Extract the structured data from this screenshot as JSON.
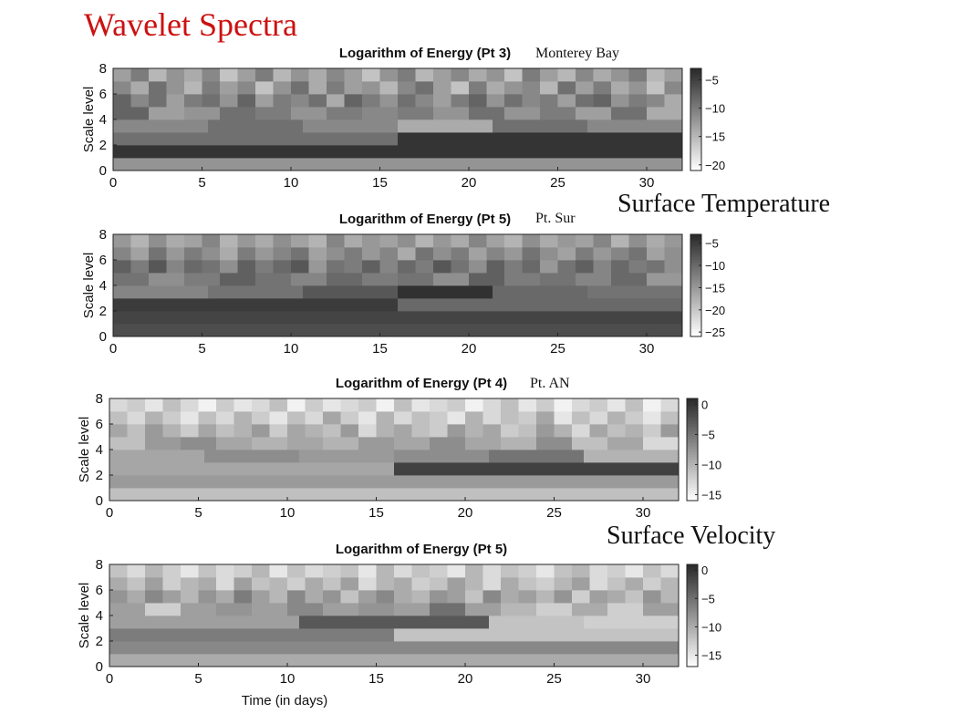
{
  "slide": {
    "title": "Wavelet Spectra",
    "section_temperature": "Surface Temperature",
    "section_velocity": "Surface Velocity",
    "colors": {
      "title": "#cc1111",
      "colormap": "gray (dark = high energy)"
    }
  },
  "chart_data": [
    {
      "type": "heatmap",
      "title": "Logarithm of Energy (Pt 3)",
      "location": "Monterey Bay",
      "xlabel": "",
      "ylabel": "Scale level",
      "xlim": [
        0,
        32
      ],
      "ylim": [
        0,
        8
      ],
      "xticks": [
        0,
        5,
        10,
        15,
        20,
        25,
        30
      ],
      "yticks": [
        0,
        2,
        4,
        6,
        8
      ],
      "colorbar": {
        "ticks": [
          -5,
          -10,
          -15,
          -20
        ],
        "range": [
          -21,
          -3
        ]
      },
      "levels_low_to_high": [
        [
          -12
        ],
        [
          -4
        ],
        [
          -9,
          -4
        ],
        [
          -11,
          -9,
          -11,
          -14,
          -9,
          -11
        ],
        [
          -8,
          -13,
          -12,
          -9,
          -10,
          -12,
          -10,
          -11,
          -10,
          -12,
          -9,
          -12,
          -10,
          -13,
          -9,
          -14
        ],
        [
          -8,
          -11,
          -9,
          -13,
          -10,
          -9,
          -12,
          -8,
          -13,
          -10,
          -11,
          -9,
          -14,
          -8,
          -10,
          -12,
          -9,
          -11,
          -13,
          -10,
          -8,
          -12,
          -9,
          -11,
          -10,
          -13,
          -9,
          -8,
          -12,
          -10,
          -11,
          -14
        ],
        [
          -11,
          -14,
          -9,
          -12,
          -15,
          -10,
          -13,
          -11,
          -16,
          -12,
          -9,
          -14,
          -10,
          -13,
          -12,
          -15,
          -11,
          -9,
          -13,
          -16,
          -10,
          -14,
          -12,
          -11,
          -15,
          -9,
          -13,
          -10,
          -14,
          -12,
          -16,
          -11
        ],
        [
          -13,
          -10,
          -15,
          -12,
          -14,
          -11,
          -16,
          -13,
          -10,
          -15,
          -12,
          -14,
          -11,
          -13,
          -16,
          -12,
          -10,
          -15,
          -13,
          -11,
          -14,
          -12,
          -16,
          -10,
          -13,
          -15,
          -11,
          -14,
          -12,
          -10,
          -15,
          -13
        ]
      ]
    },
    {
      "type": "heatmap",
      "title": "Logarithm of Energy (Pt 5)",
      "location": "Pt. Sur",
      "xlabel": "",
      "ylabel": "Scale level",
      "xlim": [
        0,
        32
      ],
      "ylim": [
        0,
        8
      ],
      "xticks": [
        0,
        5,
        10,
        15,
        20,
        25,
        30
      ],
      "yticks": [
        0,
        2,
        4,
        6,
        8
      ],
      "colorbar": {
        "ticks": [
          -5,
          -10,
          -15,
          -20,
          -25
        ],
        "range": [
          -26,
          -3
        ]
      },
      "levels_low_to_high": [
        [
          -7
        ],
        [
          -6
        ],
        [
          -5,
          -10
        ],
        [
          -13,
          -11,
          -8,
          -4,
          -10,
          -11
        ],
        [
          -11,
          -14,
          -12,
          -9,
          -11,
          -13,
          -10,
          -12,
          -11,
          -14,
          -9,
          -12,
          -11,
          -13,
          -10,
          -15
        ],
        [
          -9,
          -12,
          -8,
          -13,
          -10,
          -11,
          -14,
          -9,
          -12,
          -10,
          -8,
          -15,
          -11,
          -12,
          -9,
          -13,
          -10,
          -12,
          -8,
          -11,
          -14,
          -9,
          -12,
          -10,
          -15,
          -11,
          -9,
          -13,
          -10,
          -12,
          -11,
          -14
        ],
        [
          -13,
          -16,
          -11,
          -15,
          -12,
          -14,
          -17,
          -12,
          -15,
          -13,
          -11,
          -16,
          -14,
          -12,
          -15,
          -13,
          -17,
          -11,
          -14,
          -12,
          -16,
          -13,
          -15,
          -11,
          -14,
          -16,
          -12,
          -15,
          -13,
          -11,
          -16,
          -14
        ],
        [
          -15,
          -18,
          -14,
          -17,
          -16,
          -13,
          -18,
          -15,
          -17,
          -14,
          -16,
          -18,
          -13,
          -17,
          -15,
          -16,
          -14,
          -18,
          -15,
          -17,
          -13,
          -16,
          -18,
          -14,
          -17,
          -15,
          -16,
          -13,
          -18,
          -14,
          -17,
          -15
        ]
      ]
    },
    {
      "type": "heatmap",
      "title": "Logarithm of Energy (Pt 4)",
      "location": "Pt. AN",
      "xlabel": "",
      "ylabel": "Scale level",
      "xlim": [
        0,
        32
      ],
      "ylim": [
        0,
        8
      ],
      "xticks": [
        0,
        5,
        10,
        15,
        20,
        25,
        30
      ],
      "yticks": [
        0,
        2,
        4,
        6,
        8
      ],
      "colorbar": {
        "ticks": [
          0,
          -5,
          -10,
          -15
        ],
        "range": [
          -16,
          1
        ]
      },
      "levels_low_to_high": [
        [
          -11
        ],
        [
          -8
        ],
        [
          -9,
          -1
        ],
        [
          -9,
          -7,
          -8,
          -7,
          -5,
          -10
        ],
        [
          -11,
          -8,
          -7,
          -9,
          -10,
          -9,
          -10,
          -8,
          -9,
          -7,
          -9,
          -10,
          -7,
          -11,
          -9,
          -13
        ],
        [
          -9,
          -11,
          -8,
          -10,
          -12,
          -9,
          -11,
          -10,
          -8,
          -12,
          -9,
          -10,
          -11,
          -8,
          -13,
          -10,
          -9,
          -11,
          -12,
          -8,
          -10,
          -9,
          -12,
          -11,
          -8,
          -10,
          -13,
          -9,
          -11,
          -10,
          -12,
          -8
        ],
        [
          -11,
          -13,
          -10,
          -12,
          -14,
          -11,
          -13,
          -10,
          -12,
          -14,
          -11,
          -13,
          -9,
          -12,
          -14,
          -10,
          -13,
          -11,
          -12,
          -14,
          -10,
          -13,
          -11,
          -12,
          -9,
          -14,
          -11,
          -13,
          -10,
          -12,
          -14,
          -11
        ],
        [
          -13,
          -12,
          -14,
          -11,
          -13,
          -15,
          -12,
          -14,
          -13,
          -11,
          -15,
          -12,
          -14,
          -13,
          -12,
          -15,
          -11,
          -14,
          -13,
          -12,
          -15,
          -13,
          -11,
          -14,
          -12,
          -15,
          -13,
          -12,
          -14,
          -11,
          -15,
          -13
        ]
      ]
    },
    {
      "type": "heatmap",
      "title": "Logarithm of Energy (Pt 5)",
      "location": "",
      "xlabel": "Time (in days)",
      "ylabel": "Scale level",
      "xlim": [
        0,
        32
      ],
      "ylim": [
        0,
        8
      ],
      "xticks": [
        0,
        5,
        10,
        15,
        20,
        25,
        30
      ],
      "yticks": [
        0,
        2,
        4,
        6,
        8
      ],
      "colorbar": {
        "ticks": [
          0,
          -5,
          -10,
          -15
        ],
        "range": [
          -17,
          1
        ]
      },
      "levels_low_to_high": [
        [
          -10
        ],
        [
          -7
        ],
        [
          -6,
          -12
        ],
        [
          -9,
          -9,
          -3,
          -3,
          -12,
          -13
        ],
        [
          -9,
          -13,
          -9,
          -8,
          -9,
          -7,
          -9,
          -8,
          -9,
          -5,
          -9,
          -11,
          -13,
          -10,
          -13,
          -9
        ],
        [
          -8,
          -10,
          -7,
          -9,
          -11,
          -8,
          -10,
          -6,
          -9,
          -11,
          -7,
          -10,
          -8,
          -12,
          -9,
          -7,
          -10,
          -11,
          -8,
          -9,
          -12,
          -7,
          -10,
          -9,
          -11,
          -8,
          -13,
          -9,
          -10,
          -12,
          -8,
          -11
        ],
        [
          -10,
          -12,
          -9,
          -13,
          -11,
          -10,
          -14,
          -9,
          -12,
          -11,
          -13,
          -10,
          -12,
          -9,
          -14,
          -11,
          -10,
          -13,
          -12,
          -9,
          -11,
          -14,
          -10,
          -12,
          -13,
          -11,
          -9,
          -14,
          -12,
          -10,
          -13,
          -11
        ],
        [
          -12,
          -14,
          -11,
          -13,
          -15,
          -12,
          -14,
          -13,
          -11,
          -15,
          -12,
          -14,
          -13,
          -12,
          -15,
          -11,
          -14,
          -12,
          -13,
          -15,
          -11,
          -14,
          -12,
          -13,
          -15,
          -12,
          -11,
          -14,
          -13,
          -15,
          -12,
          -14
        ]
      ]
    }
  ]
}
